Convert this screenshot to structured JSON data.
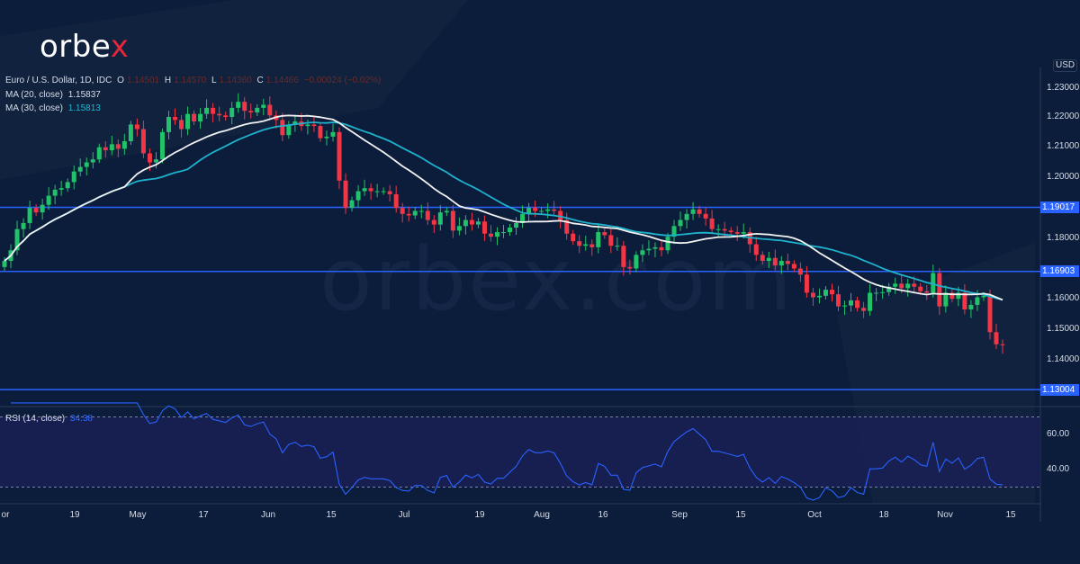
{
  "brand": {
    "logo_text": "orbe",
    "logo_accent": "x",
    "watermark": "orbex.com"
  },
  "legend": {
    "symbol": "Euro / U.S. Dollar, 1D, IDC",
    "o_label": "O",
    "o": "1.14501",
    "h_label": "H",
    "h": "1.14570",
    "l_label": "L",
    "l": "1.14360",
    "c_label": "C",
    "c": "1.14466",
    "change": "−0.00024 (−0.02%)",
    "ma20_label": "MA (20, close)",
    "ma20": "1.15837",
    "ma30_label": "MA (30, close)",
    "ma30": "1.15813",
    "rsi_label": "RSI (14, close)",
    "rsi": "34.38"
  },
  "colors": {
    "up": "#22c26a",
    "down": "#f23645",
    "ma20": "#f2f2f2",
    "ma30": "#1fb2cc",
    "level": "#2962ff",
    "rsi": "#2962ff",
    "background": "#0b1d3a"
  },
  "chart_data": {
    "type": "candlestick",
    "currency": "USD",
    "yticks": [
      "1.23000",
      "1.22000",
      "1.21000",
      "1.20000",
      "1.18000",
      "1.16000",
      "1.15000",
      "1.14000"
    ],
    "ylim": [
      1.125,
      1.235
    ],
    "levels": [
      "1.19017",
      "1.16903",
      "1.13004"
    ],
    "xticks": [
      "or",
      "19",
      "May",
      "17",
      "Jun",
      "15",
      "Jul",
      "19",
      "Aug",
      "16",
      "Sep",
      "15",
      "Oct",
      "18",
      "Nov",
      "15"
    ],
    "closes": [
      1.1725,
      1.176,
      1.183,
      1.185,
      1.19,
      1.1885,
      1.191,
      1.194,
      1.196,
      1.1965,
      1.1985,
      1.202,
      1.2035,
      1.205,
      1.206,
      1.21,
      1.209,
      1.211,
      1.2095,
      1.212,
      1.2175,
      1.216,
      1.208,
      1.205,
      1.206,
      1.215,
      1.22,
      1.219,
      1.216,
      1.221,
      1.2185,
      1.221,
      1.223,
      1.221,
      1.2205,
      1.22,
      1.223,
      1.225,
      1.222,
      1.2215,
      1.223,
      1.224,
      1.2205,
      1.219,
      1.214,
      1.2175,
      1.2185,
      1.217,
      1.2175,
      1.217,
      1.213,
      1.2135,
      1.215,
      1.199,
      1.19,
      1.1925,
      1.1955,
      1.1965,
      1.1955,
      1.1955,
      1.1955,
      1.1945,
      1.19,
      1.188,
      1.1875,
      1.189,
      1.189,
      1.186,
      1.1845,
      1.1885,
      1.189,
      1.1825,
      1.184,
      1.186,
      1.1845,
      1.1855,
      1.1815,
      1.1805,
      1.182,
      1.182,
      1.1835,
      1.185,
      1.188,
      1.19,
      1.189,
      1.189,
      1.1895,
      1.189,
      1.186,
      1.1815,
      1.179,
      1.1775,
      1.178,
      1.177,
      1.182,
      1.181,
      1.1775,
      1.1775,
      1.1705,
      1.17,
      1.1745,
      1.176,
      1.1765,
      1.177,
      1.176,
      1.1805,
      1.184,
      1.186,
      1.188,
      1.1895,
      1.188,
      1.1865,
      1.183,
      1.183,
      1.1825,
      1.182,
      1.1815,
      1.182,
      1.178,
      1.1745,
      1.1725,
      1.1735,
      1.171,
      1.1725,
      1.1715,
      1.17,
      1.168,
      1.162,
      1.1605,
      1.161,
      1.163,
      1.1615,
      1.1575,
      1.1578,
      1.1595,
      1.157,
      1.156,
      1.162,
      1.162,
      1.1622,
      1.164,
      1.165,
      1.1635,
      1.165,
      1.164,
      1.1625,
      1.162,
      1.1685,
      1.1575,
      1.162,
      1.16,
      1.162,
      1.1565,
      1.158,
      1.1605,
      1.161,
      1.149,
      1.145,
      1.1447
    ],
    "rsi_ticks": [
      "60.00",
      "40.00"
    ],
    "rsi_bands": [
      70,
      30
    ]
  }
}
